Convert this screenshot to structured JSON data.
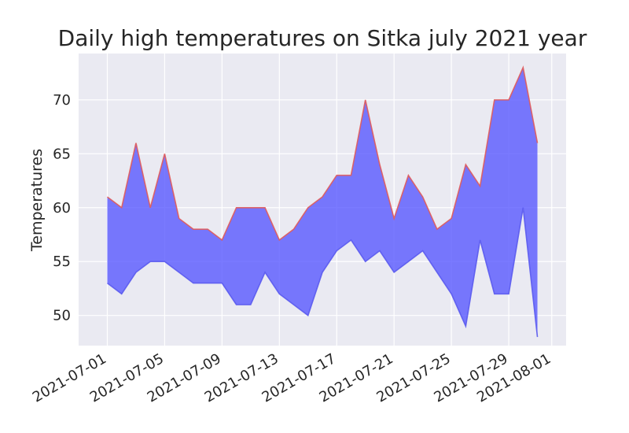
{
  "chart_data": {
    "type": "area",
    "title": "Daily high temperatures on Sitka july 2021 year",
    "xlabel": "",
    "ylabel": "Temperatures",
    "x": [
      "2021-07-01",
      "2021-07-02",
      "2021-07-03",
      "2021-07-04",
      "2021-07-05",
      "2021-07-06",
      "2021-07-07",
      "2021-07-08",
      "2021-07-09",
      "2021-07-10",
      "2021-07-11",
      "2021-07-12",
      "2021-07-13",
      "2021-07-14",
      "2021-07-15",
      "2021-07-16",
      "2021-07-17",
      "2021-07-18",
      "2021-07-19",
      "2021-07-20",
      "2021-07-21",
      "2021-07-22",
      "2021-07-23",
      "2021-07-24",
      "2021-07-25",
      "2021-07-26",
      "2021-07-27",
      "2021-07-28",
      "2021-07-29",
      "2021-07-30",
      "2021-07-31"
    ],
    "series": [
      {
        "name": "",
        "color": "#e05a5a",
        "values": [
          61,
          60,
          66,
          60,
          65,
          59,
          58,
          58,
          57,
          60,
          60,
          60,
          57,
          58,
          60,
          61,
          63,
          63,
          70,
          64,
          59,
          63,
          61,
          58,
          59,
          64,
          62,
          70,
          70,
          73,
          66
        ]
      },
      {
        "name": "",
        "color": "#5a5aee",
        "values": [
          53,
          52,
          54,
          55,
          55,
          54,
          53,
          53,
          53,
          51,
          51,
          54,
          52,
          51,
          50,
          54,
          56,
          57,
          55,
          56,
          54,
          55,
          56,
          54,
          52,
          49,
          57,
          52,
          52,
          60,
          48
        ]
      }
    ],
    "fill_color": "#5555ff",
    "fill_between": true,
    "xticks": [
      "2021-07-01",
      "2021-07-05",
      "2021-07-09",
      "2021-07-13",
      "2021-07-17",
      "2021-07-21",
      "2021-07-25",
      "2021-07-29",
      "2021-08-01"
    ],
    "yticks": [
      50,
      55,
      60,
      65,
      70
    ],
    "xlim": [
      "2021-06-29",
      "2021-08-02"
    ],
    "ylim": [
      47.2,
      74.3
    ],
    "grid": true,
    "plot_background": "#eaeaf2"
  }
}
